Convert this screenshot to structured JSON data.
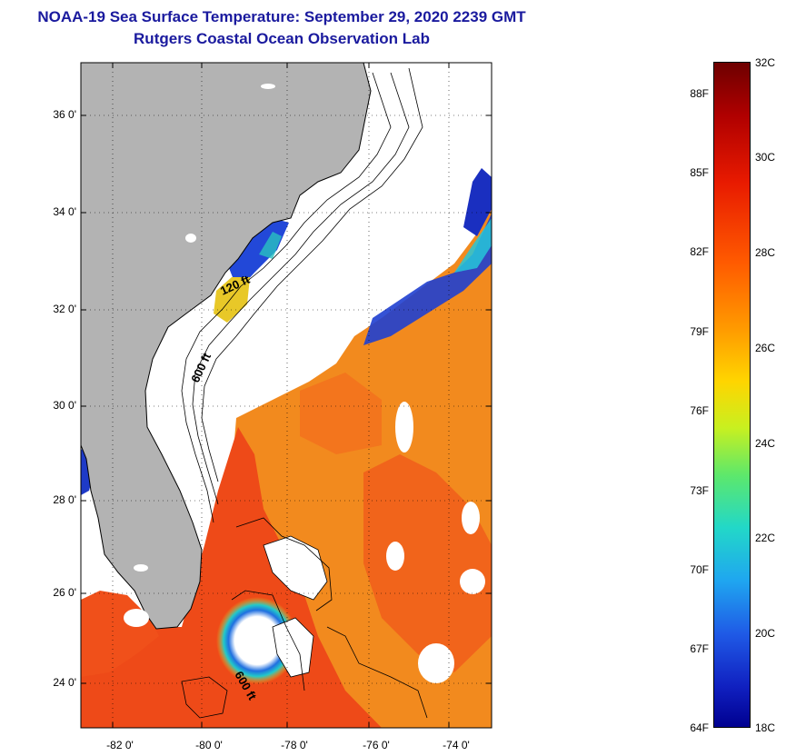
{
  "title": "NOAA-19 Sea Surface Temperature:  September 29, 2020 2239 GMT",
  "subtitle": "Rutgers Coastal Ocean Observation Lab",
  "map": {
    "lat_labels": [
      "36 0'",
      "34 0'",
      "32 0'",
      "30 0'",
      "28 0'",
      "26 0'",
      "24 0'"
    ],
    "lon_labels": [
      "-82 0'",
      "-80 0'",
      "-78 0'",
      "-76 0'",
      "-74 0'"
    ],
    "contour_labels": [
      "120 ft",
      "600 ft",
      "600 ft"
    ],
    "colors": {
      "land": "#b3b3b3",
      "cloud": "#ffffff",
      "warm_sea": "#f24a16"
    }
  },
  "colorbar": {
    "fahrenheit_labels": [
      "88F",
      "85F",
      "82F",
      "79F",
      "76F",
      "73F",
      "70F",
      "67F",
      "64F"
    ],
    "celsius_labels": [
      "32C",
      "30C",
      "28C",
      "26C",
      "24C",
      "22C",
      "20C",
      "18C"
    ],
    "range_c": [
      18,
      32
    ]
  }
}
